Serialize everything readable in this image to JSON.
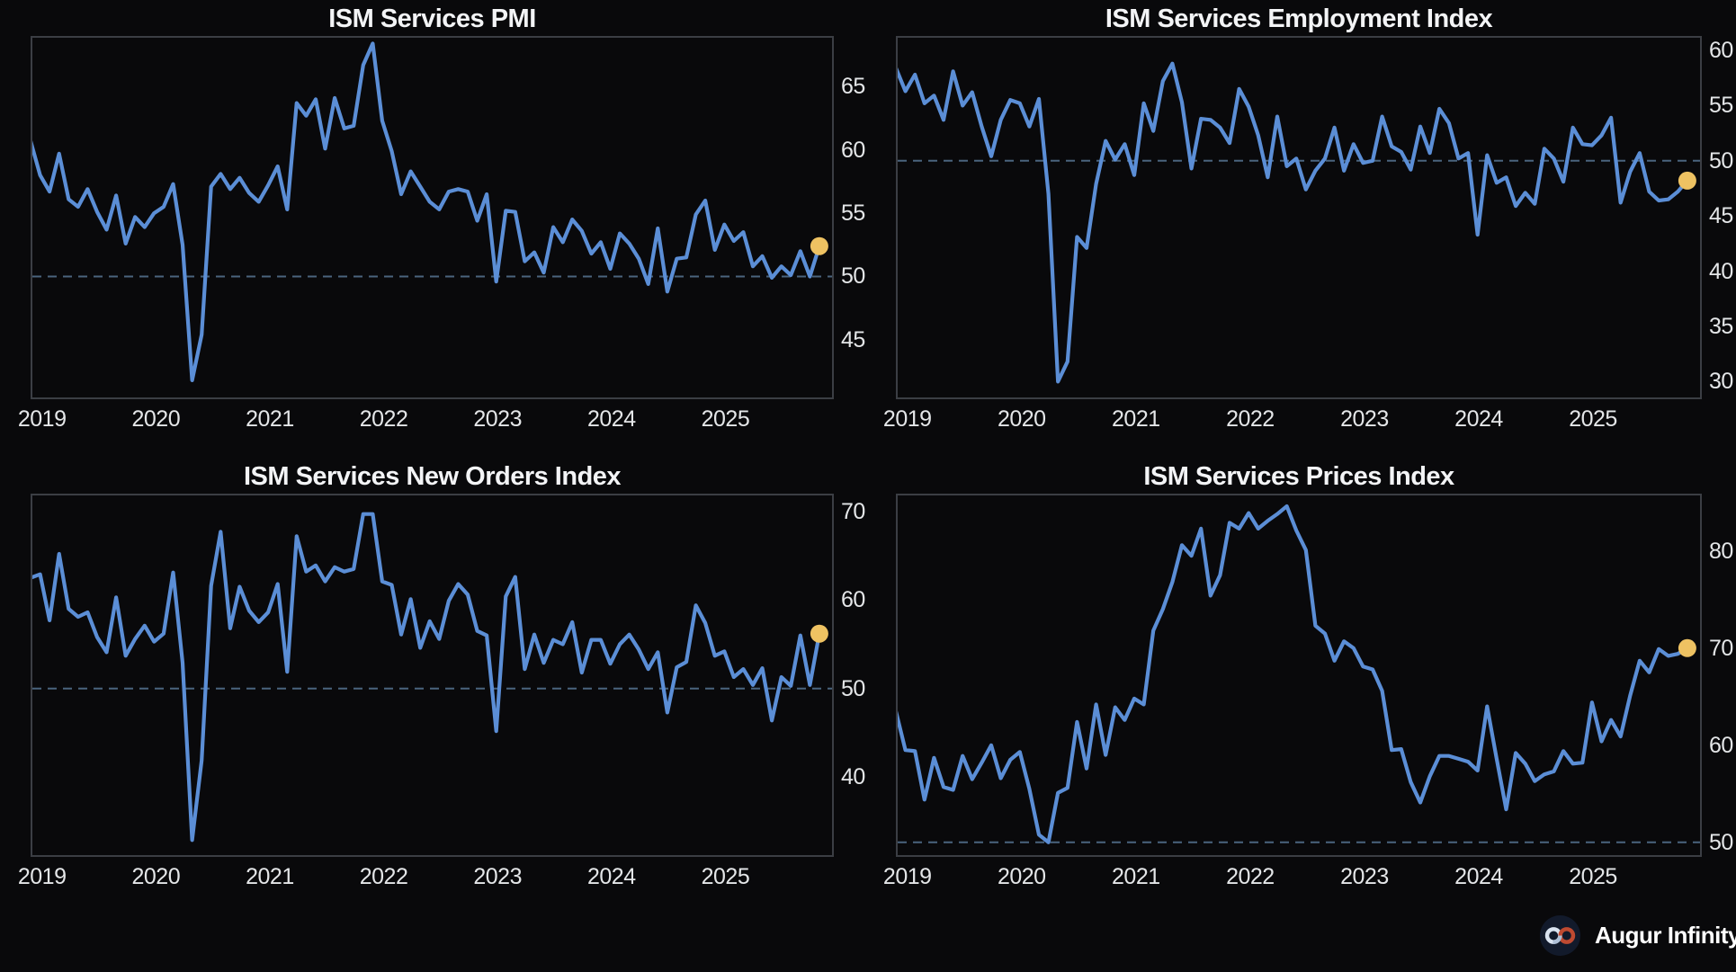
{
  "style": {
    "background": "#09090b",
    "plot_border": "#3b3e44",
    "series_line": "#5b8ed6",
    "latest_marker": "#eec262",
    "reference_dash": "#4a647e",
    "title_color": "#f3f4f6",
    "tick_color": "#e4e6e8"
  },
  "branding": {
    "name": "Augur Infinity",
    "logo_icon": "infinity-icon"
  },
  "chart_data": [
    {
      "type": "line",
      "title": "ISM Services PMI",
      "x_start": "2018-11",
      "x_end": "2025-10",
      "x_tick_labels": [
        "2019",
        "2020",
        "2021",
        "2022",
        "2023",
        "2024",
        "2025"
      ],
      "y_ticks": [
        45,
        50,
        55,
        60,
        65
      ],
      "ylim": [
        40.3,
        69.0
      ],
      "reference_line": 50,
      "grid": false,
      "legend": "none",
      "latest_value": 52.4,
      "values": [
        60.7,
        58.0,
        56.7,
        59.7,
        56.1,
        55.5,
        56.9,
        55.1,
        53.7,
        56.4,
        52.6,
        54.7,
        53.9,
        55.0,
        55.5,
        57.3,
        52.5,
        41.8,
        45.4,
        57.1,
        58.1,
        56.9,
        57.8,
        56.6,
        55.9,
        57.2,
        58.7,
        55.3,
        63.7,
        62.7,
        64.0,
        60.1,
        64.1,
        61.7,
        61.9,
        66.7,
        68.4,
        62.3,
        59.9,
        56.5,
        58.3,
        57.1,
        55.9,
        55.3,
        56.7,
        56.9,
        56.7,
        54.4,
        56.5,
        49.6,
        55.2,
        55.1,
        51.2,
        51.9,
        50.3,
        53.9,
        52.7,
        54.5,
        53.6,
        51.8,
        52.7,
        50.6,
        53.4,
        52.6,
        51.4,
        49.4,
        53.8,
        48.8,
        51.4,
        51.5,
        54.9,
        56.0,
        52.1,
        54.1,
        52.8,
        53.5,
        50.8,
        51.6,
        49.9,
        50.8,
        50.1,
        52.0,
        50.0,
        52.4
      ]
    },
    {
      "type": "line",
      "title": "ISM Services Employment Index",
      "x_start": "2018-11",
      "x_end": "2025-10",
      "x_tick_labels": [
        "2019",
        "2020",
        "2021",
        "2022",
        "2023",
        "2024",
        "2025"
      ],
      "y_ticks": [
        30,
        35,
        40,
        45,
        50,
        55,
        60
      ],
      "ylim": [
        28.4,
        61.3
      ],
      "reference_line": 50,
      "grid": false,
      "legend": "none",
      "latest_value": 48.2,
      "values": [
        58.4,
        56.3,
        57.8,
        55.2,
        55.9,
        53.7,
        58.1,
        55.0,
        56.2,
        53.1,
        50.4,
        53.7,
        55.5,
        55.2,
        53.1,
        55.6,
        47.0,
        30.0,
        31.8,
        43.1,
        42.1,
        47.9,
        51.8,
        50.1,
        51.5,
        48.7,
        55.2,
        52.7,
        57.2,
        58.8,
        55.3,
        49.3,
        53.8,
        53.7,
        53.0,
        51.6,
        56.5,
        54.9,
        52.3,
        48.5,
        54.0,
        49.5,
        50.2,
        47.4,
        49.1,
        50.2,
        53.0,
        49.1,
        51.5,
        49.8,
        50.0,
        54.0,
        51.3,
        50.8,
        49.2,
        53.1,
        50.7,
        54.7,
        53.4,
        50.2,
        50.7,
        43.3,
        50.5,
        48.0,
        48.5,
        45.9,
        47.1,
        46.1,
        51.1,
        50.2,
        48.1,
        53.0,
        51.5,
        51.4,
        52.3,
        53.9,
        46.2,
        49.0,
        50.7,
        47.2,
        46.4,
        46.5,
        47.2,
        48.2
      ]
    },
    {
      "type": "line",
      "title": "ISM Services New Orders Index",
      "x_start": "2018-11",
      "x_end": "2025-10",
      "x_tick_labels": [
        "2019",
        "2020",
        "2021",
        "2022",
        "2023",
        "2024",
        "2025"
      ],
      "y_ticks": [
        40,
        50,
        60,
        70
      ],
      "ylim": [
        31.0,
        72.0
      ],
      "reference_line": 50,
      "grid": false,
      "legend": "none",
      "latest_value": 56.2,
      "values": [
        62.5,
        62.9,
        57.7,
        65.2,
        59.0,
        58.1,
        58.6,
        55.8,
        54.1,
        60.3,
        53.7,
        55.6,
        57.1,
        55.3,
        56.2,
        63.1,
        52.9,
        32.9,
        41.9,
        61.6,
        67.7,
        56.8,
        61.5,
        58.8,
        57.5,
        58.6,
        61.8,
        51.9,
        67.2,
        63.2,
        63.9,
        62.1,
        63.7,
        63.2,
        63.5,
        69.7,
        69.7,
        62.1,
        61.7,
        56.1,
        60.1,
        54.6,
        57.6,
        55.6,
        59.9,
        61.8,
        60.6,
        56.5,
        56.0,
        45.2,
        60.4,
        62.6,
        52.2,
        56.1,
        52.9,
        55.5,
        55.0,
        57.5,
        51.8,
        55.5,
        55.5,
        52.8,
        55.0,
        56.1,
        54.4,
        52.2,
        54.1,
        47.3,
        52.4,
        53.0,
        59.4,
        57.4,
        53.7,
        54.2,
        51.3,
        52.2,
        50.4,
        52.3,
        46.4,
        51.3,
        50.3,
        56.0,
        50.4,
        56.2
      ]
    },
    {
      "type": "line",
      "title": "ISM Services Prices Index",
      "x_start": "2018-11",
      "x_end": "2025-10",
      "x_tick_labels": [
        "2019",
        "2020",
        "2021",
        "2022",
        "2023",
        "2024",
        "2025"
      ],
      "y_ticks": [
        50,
        60,
        70,
        80
      ],
      "ylim": [
        48.5,
        85.9
      ],
      "reference_line": 50,
      "grid": false,
      "legend": "none",
      "latest_value": 70.0,
      "values": [
        63.5,
        59.5,
        59.4,
        54.4,
        58.7,
        55.7,
        55.4,
        58.9,
        56.5,
        58.2,
        60.0,
        56.6,
        58.5,
        59.3,
        55.5,
        50.8,
        50.0,
        55.1,
        55.6,
        62.4,
        57.6,
        64.2,
        59.0,
        63.9,
        62.6,
        64.8,
        64.2,
        71.8,
        74.0,
        76.8,
        80.6,
        79.5,
        82.3,
        75.4,
        77.5,
        82.9,
        82.3,
        83.9,
        82.3,
        83.1,
        83.8,
        84.6,
        82.1,
        80.1,
        72.3,
        71.5,
        68.7,
        70.7,
        70.0,
        68.1,
        67.8,
        65.6,
        59.5,
        59.6,
        56.2,
        54.1,
        56.8,
        58.9,
        58.9,
        58.6,
        58.3,
        57.4,
        64.0,
        58.6,
        53.4,
        59.2,
        58.1,
        56.3,
        57.0,
        57.3,
        59.4,
        58.1,
        58.2,
        64.4,
        60.4,
        62.6,
        60.9,
        65.1,
        68.7,
        67.5,
        69.9,
        69.2,
        69.4,
        70.0
      ]
    }
  ]
}
